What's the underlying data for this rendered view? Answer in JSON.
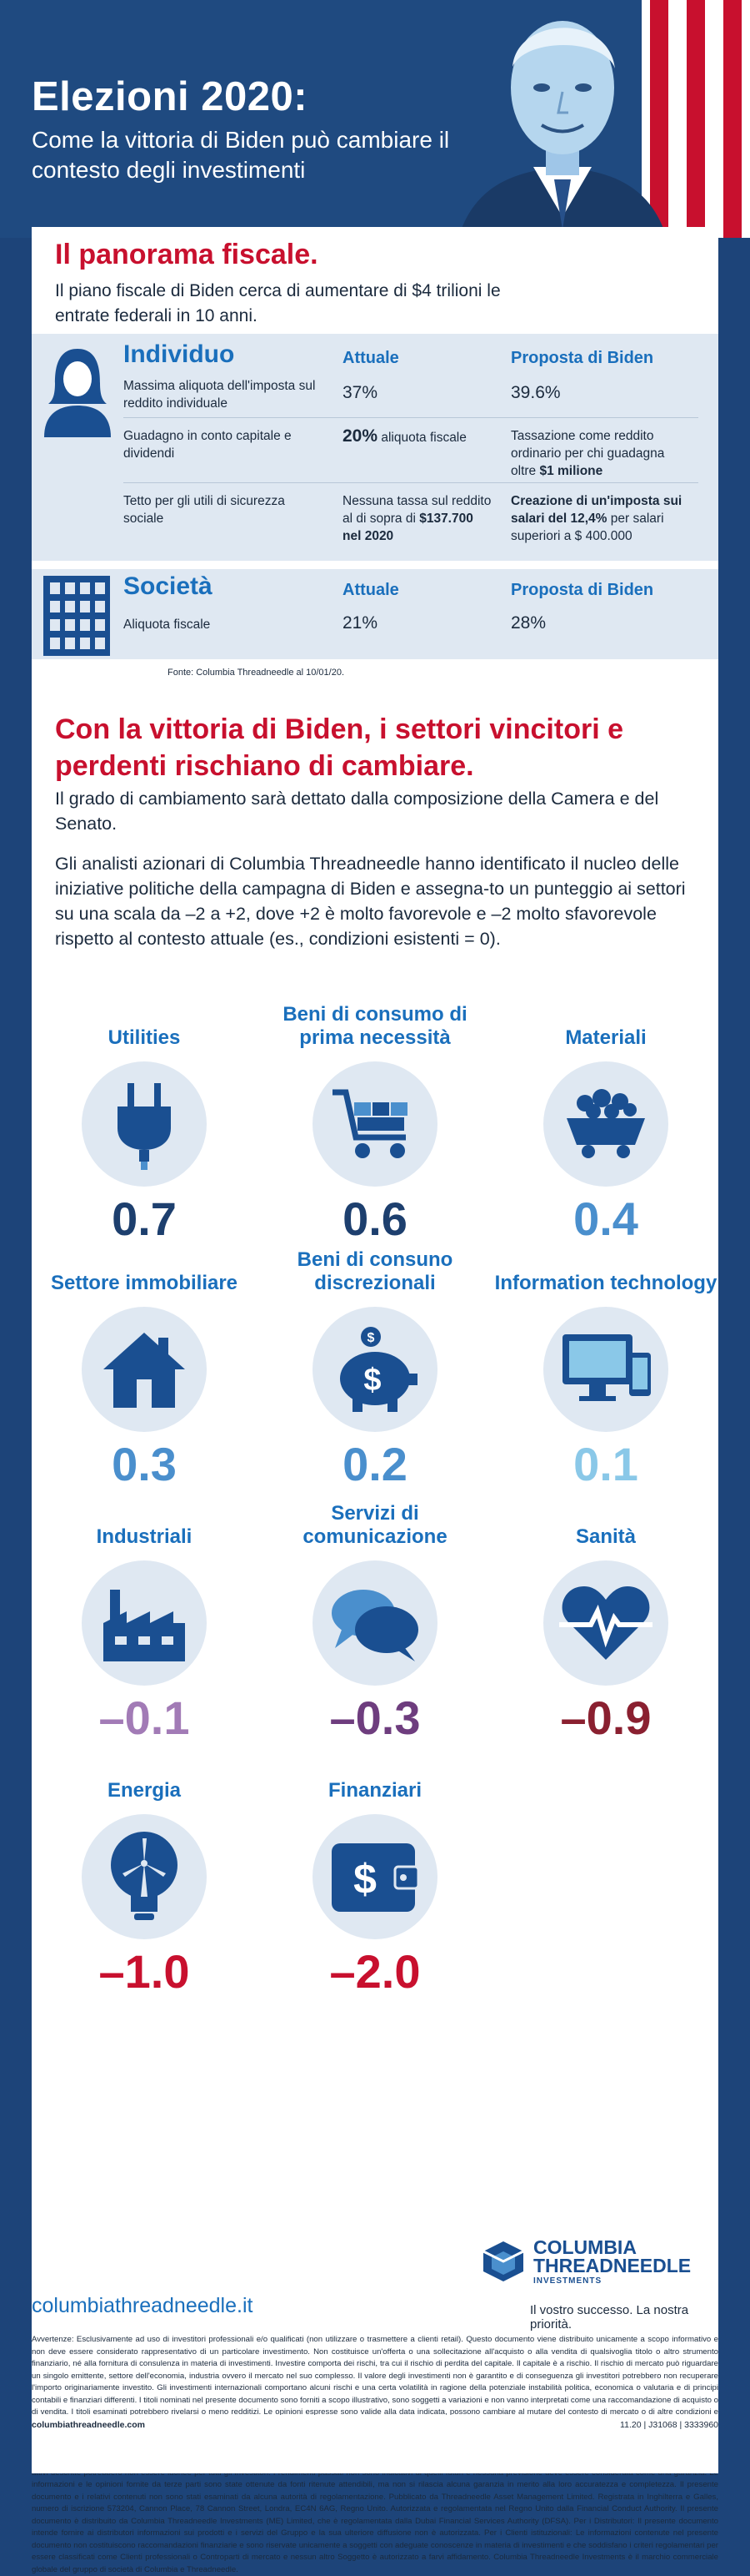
{
  "header": {
    "title": "Elezioni 2020:",
    "subtitle": "Come la vittoria di Biden può cambiare il contesto degli investimenti"
  },
  "fiscal": {
    "title": "Il panorama fiscale.",
    "text": "Il piano fiscale di Biden cerca di aumentare di $4 trilioni le entrate federali in 10 anni."
  },
  "individuo": {
    "category": "Individuo",
    "col_current": "Attuale",
    "col_proposal": "Proposta di Biden",
    "rows": [
      {
        "label": "Massima aliquota dell'imposta sul reddito individuale",
        "current": "37%",
        "proposal": "39.6%"
      },
      {
        "label": "Guadagno in conto capitale e dividendi",
        "current_big": "20%",
        "current_rest": " aliquota fiscale",
        "proposal_a": "Tassazione come reddito ordinario per chi guadagna oltre ",
        "proposal_b": "$1 milione"
      },
      {
        "label": "Tetto per gli utili di sicurezza sociale",
        "current_a": "Nessuna tassa sul reddito al di sopra di ",
        "current_b": "$137.700 nel 2020",
        "proposal_a": "Creazione di un'imposta sui salari del 12,4%",
        "proposal_b": " per salari superiori a $ 400.000"
      }
    ]
  },
  "societa": {
    "category": "Società",
    "col_current": "Attuale",
    "col_proposal": "Proposta di Biden",
    "rows": [
      {
        "label": "Aliquota fiscale",
        "current": "21%",
        "proposal": "28%"
      }
    ]
  },
  "source": "Fonte: Columbia Threadneedle al 10/01/20.",
  "sectors_intro": {
    "title": "Con la vittoria di Biden, i settori vincitori e perdenti rischiano di cambiare.",
    "p1": "Il grado di cambiamento sarà dettato dalla composizione della Camera e del Senato.",
    "p2": "Gli analisti azionari di Columbia Threadneedle hanno identificato il nucleo delle iniziative politiche della campagna di Biden e assegna-to un punteggio ai settori su una scala da –2 a +2, dove +2 è molto favorevole e –2 molto sfavorevole rispetto al contesto attuale (es., condizioni esistenti = 0)."
  },
  "sectors": [
    {
      "name": "Utilities",
      "score": "0.7",
      "icon": "plug-icon",
      "color": "#1d3f6e"
    },
    {
      "name": "Beni di consumo di prima necessità",
      "score": "0.6",
      "icon": "shopping-cart-icon",
      "color": "#1d3f6e"
    },
    {
      "name": "Materiali",
      "score": "0.4",
      "icon": "mine-cart-icon",
      "color": "#4a8fcd"
    },
    {
      "name": "Settore immobiliare",
      "score": "0.3",
      "icon": "house-icon",
      "color": "#4a8fcd"
    },
    {
      "name": "Beni di consuno discrezionali",
      "score": "0.2",
      "icon": "piggy-bank-icon",
      "color": "#4a8fcd"
    },
    {
      "name": "Information technology",
      "score": "0.1",
      "icon": "computer-icon",
      "color": "#8ac8e8"
    },
    {
      "name": "Industriali",
      "score": "–0.1",
      "icon": "factory-icon",
      "color": "#a27bb6"
    },
    {
      "name": "Servizi di comunicazione",
      "score": "–0.3",
      "icon": "chat-bubbles-icon",
      "color": "#6e3d7e"
    },
    {
      "name": "Sanità",
      "score": "–0.9",
      "icon": "heartbeat-icon",
      "color": "#8a2030"
    },
    {
      "name": "Energia",
      "score": "–1.0",
      "icon": "wind-turbine-bulb-icon",
      "color": "#c8102e"
    },
    {
      "name": "Finanziari",
      "score": "–2.0",
      "icon": "wallet-icon",
      "color": "#c8102e"
    }
  ],
  "colors": {
    "navy": "#1d4479",
    "accent_blue": "#1a6fbc",
    "icon_blue": "#1a4f91",
    "red": "#c8102e",
    "table_bg": "#dfe8f2"
  },
  "footer": {
    "logo_line1": "COLUMBIA",
    "logo_line2": "THREADNEEDLE",
    "logo_sub": "INVESTMENTS",
    "website": "columbiathreadneedle.it",
    "tagline": "Il vostro successo. La nostra priorità.",
    "disclaimer": "Avvertenze: Esclusivamente ad uso di investitori professionali e/o qualificati (non utilizzare o trasmettere a clienti retail). Questo documento viene distribuito unicamente a scopo informativo e non deve essere considerato rappresentativo di un particolare investimento. Non costituisce un'offerta o una sollecitazione all'acquisto o alla vendita di qualsivoglia titolo o altro strumento finanziario, né alla fornitura di consulenza in materia di investimenti. Investire comporta dei rischi, tra cui il rischio di perdita del capitale. Il capitale è a rischio. Il rischio di mercato può riguardare un singolo emittente, settore dell'economia, industria ovvero il mercato nel suo complesso. Il valore degli investimenti non è garantito e di conseguenza gli investitori potrebbero non recuperare l'importo originariamente investito. Gli investimenti internazionali comportano alcuni rischi e una certa volatilità in ragione della potenziale instabilità politica, economica o valutaria e di principi contabili e finanziari differenti. I titoli nominati nel presente documento sono forniti a scopo illustrativo, sono soggetti a variazioni e non vanno interpretati come una raccomandazione di acquisto o di vendita. I titoli esaminati potrebbero rivelarsi o meno redditizi. Le opinioni espresse sono valide alla data indicata, possono cambiare al mutare del contesto di mercato o di altre condizioni e possono differire da altre opinioni espresse da altre società consociate o affiliate di Columbia Threadneedle Investments (Columbia Threadneedle). Le decisioni di investimento o gli investimenti effettivamente realizzati da Columbia Threadneedle e dalle sue affiliate, per conto proprio o per conto di clienti, possono non riflettere necessariamente le opinioni espresse. Le informazioni contenute nel presente documento non costituiscono una consulenza d'investimento e non tengono conto delle circostanze specifiche di ciascun investitore. Le decisioni di investimento dovrebbero essere sempre effettuate in funzione delle esigenze finanziarie, degli obiettivi, delle finalità, dell'orizzonte di investimento e della tolleranza al rischio di ciascun investitore. Le classi di attivi descritte potrebbero non essere idonee per tutti gli investitori. I rendimenti passati non sono indicativi di quelli futuri e nessuna previsione deve essere considerata come una garanzia. Le informazioni e le opinioni fornite da terze parti sono state ottenute da fonti ritenute attendibili, ma non si rilascia alcuna garanzia in merito alla loro accuratezza e completezza. Il presente documento e i relativi contenuti non sono stati esaminati da alcuna autorità di regolamentazione. Pubblicato da Threadneedle Asset Management Limited. Registrata in Inghilterra e Galles, numero di iscrizione 573204, Cannon Place, 78 Cannon Street, Londra, EC4N 6AG, Regno Unito. Autorizzata e regolamentata nel Regno Unito dalla Financial Conduct Authority. Il presente documento è distribuito da Columbia Threadneedle Investments (ME) Limited, che è regolamentata dalla Dubai Financial Services Authority (DFSA). Per i Distributori: Il presente documento intende fornire ai distributori informazioni sui prodotti e i servizi del Gruppo e la sua ulteriore diffusione non è autorizzata. Per i Clienti istituzionali: Le informazioni contenute nel presente documento non costituiscono raccomandazioni finanziarie e sono riservate unicamente a soggetti con adeguate conoscenze in materia di investimenti e che soddisfano i criteri regolamentari per essere classificati come Clienti professionali o Controparti di mercato e nessun altro Soggetto è autorizzato a farvi affidamento. Columbia Threadneedle Investments è il marchio commerciale globale del gruppo di società di Columbia e Threadneedle.",
    "url_bottom": "columbiathreadneedle.com",
    "code": "11.20 | J31068 | 3333960"
  }
}
